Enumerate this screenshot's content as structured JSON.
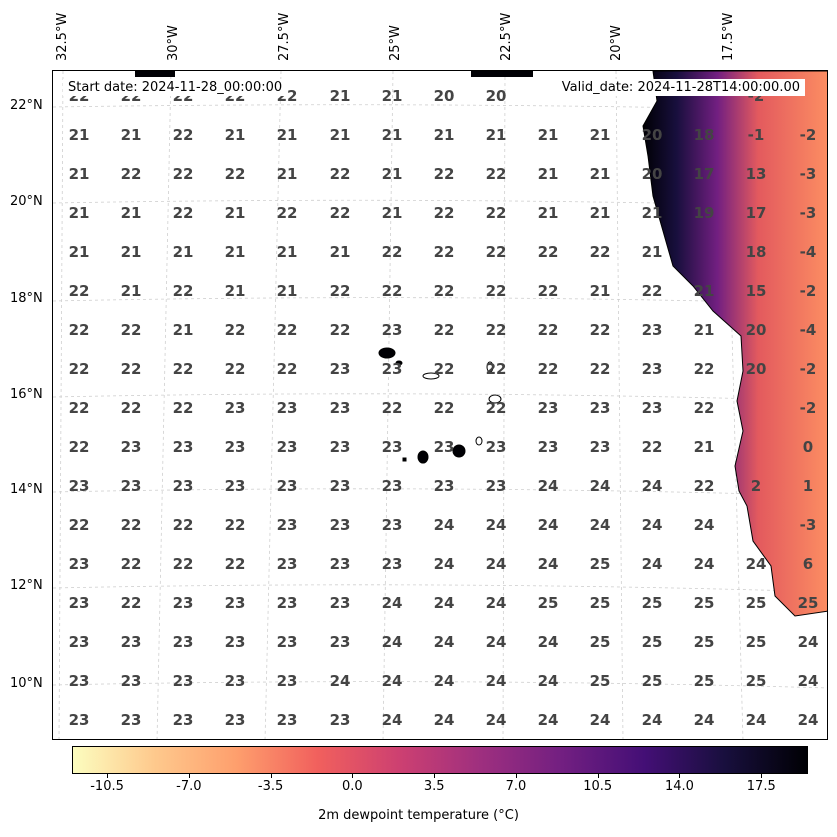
{
  "map": {
    "start_date": "Start date: 2024-11-28_00:00:00",
    "valid_date": "Valid_date: 2024-11-28T14:00:00.00",
    "lon_labels": [
      "32.5°W",
      "30°W",
      "27.5°W",
      "25°W",
      "22.5°W",
      "20°W",
      "17.5°W"
    ],
    "lat_labels": [
      "22°N",
      "20°N",
      "18°N",
      "16°N",
      "14°N",
      "12°N",
      "10°N"
    ],
    "grid_values": [
      [
        "22",
        "22",
        "22",
        "22",
        "22",
        "21",
        "21",
        "20",
        "20",
        "",
        "",
        "",
        "",
        "-2"
      ],
      [
        "21",
        "21",
        "22",
        "21",
        "21",
        "21",
        "21",
        "21",
        "21",
        "21",
        "21",
        "20",
        "18",
        "-1",
        "-2"
      ],
      [
        "21",
        "22",
        "22",
        "22",
        "21",
        "22",
        "21",
        "22",
        "22",
        "21",
        "21",
        "20",
        "17",
        "13",
        "-3"
      ],
      [
        "21",
        "21",
        "22",
        "21",
        "22",
        "22",
        "21",
        "22",
        "22",
        "21",
        "21",
        "21",
        "19",
        "17",
        "-3"
      ],
      [
        "21",
        "21",
        "21",
        "21",
        "21",
        "21",
        "22",
        "22",
        "22",
        "22",
        "22",
        "21",
        "",
        "18",
        "-4"
      ],
      [
        "22",
        "21",
        "22",
        "21",
        "21",
        "22",
        "22",
        "22",
        "22",
        "22",
        "21",
        "22",
        "21",
        "15",
        "-2"
      ],
      [
        "22",
        "22",
        "21",
        "22",
        "22",
        "22",
        "23",
        "22",
        "22",
        "22",
        "22",
        "23",
        "21",
        "20",
        "-4"
      ],
      [
        "22",
        "22",
        "22",
        "22",
        "22",
        "23",
        "23",
        "22",
        "22",
        "22",
        "22",
        "23",
        "22",
        "20",
        "-2"
      ],
      [
        "22",
        "22",
        "22",
        "23",
        "23",
        "23",
        "22",
        "22",
        "22",
        "23",
        "23",
        "23",
        "22",
        "",
        "-2"
      ],
      [
        "22",
        "23",
        "23",
        "23",
        "23",
        "23",
        "23",
        "23",
        "23",
        "23",
        "23",
        "22",
        "21",
        "",
        "0"
      ],
      [
        "23",
        "23",
        "23",
        "23",
        "23",
        "23",
        "23",
        "23",
        "23",
        "24",
        "24",
        "24",
        "22",
        "2",
        "1"
      ],
      [
        "22",
        "22",
        "22",
        "22",
        "23",
        "23",
        "23",
        "24",
        "24",
        "24",
        "24",
        "24",
        "24",
        "",
        "-3"
      ],
      [
        "23",
        "22",
        "22",
        "22",
        "23",
        "23",
        "23",
        "24",
        "24",
        "24",
        "25",
        "24",
        "24",
        "24",
        "6"
      ],
      [
        "23",
        "22",
        "23",
        "23",
        "23",
        "23",
        "24",
        "24",
        "24",
        "25",
        "25",
        "25",
        "25",
        "25",
        "25"
      ],
      [
        "23",
        "23",
        "23",
        "23",
        "23",
        "23",
        "24",
        "24",
        "24",
        "24",
        "25",
        "25",
        "25",
        "25",
        "24"
      ],
      [
        "23",
        "23",
        "23",
        "23",
        "23",
        "24",
        "24",
        "24",
        "24",
        "24",
        "25",
        "25",
        "25",
        "25",
        "24"
      ],
      [
        "23",
        "23",
        "23",
        "23",
        "23",
        "23",
        "24",
        "24",
        "24",
        "24",
        "24",
        "24",
        "24",
        "24",
        "24"
      ]
    ]
  },
  "colorbar": {
    "ticks": [
      "-10.5",
      "-7.0",
      "-3.5",
      "0.0",
      "3.5",
      "7.0",
      "10.5",
      "14.0",
      "17.5"
    ],
    "label": "2m dewpoint temperature (°C)",
    "min": -12,
    "max": 19.5,
    "colors": [
      "#fcfdbf",
      "#fec98d",
      "#fe9f6d",
      "#f1605d",
      "#cd4071",
      "#9e2f7f",
      "#721f81",
      "#440f76",
      "#180f3d",
      "#000004"
    ]
  }
}
